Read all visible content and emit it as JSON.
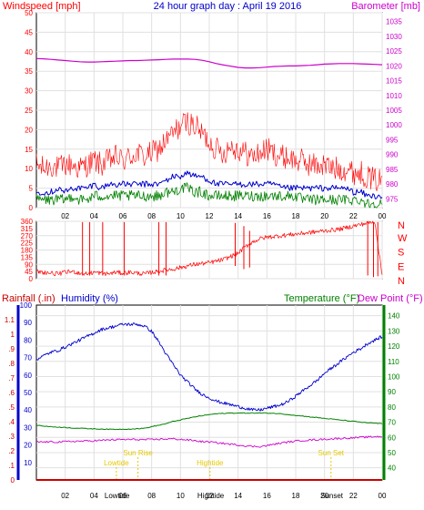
{
  "header": {
    "title": "24 hour graph day : April 19 2016",
    "left_label": "Windspeed [mph]",
    "right_label": "Barometer [mb]"
  },
  "colors": {
    "wind": "#ff0000",
    "gust": "#ff0000",
    "avg": "#0000cc",
    "speed": "#008000",
    "baro": "#cc00cc",
    "direction": "#ff0000",
    "humidity": "#0000cc",
    "temperature": "#008000",
    "dewpoint": "#cc00cc",
    "events": "#e6c800",
    "rain_axis": "#cc0000",
    "hum_axis": "#0000cc",
    "temp_axis": "#008000",
    "dew_axis": "#cc00cc",
    "title": "#0000cc"
  },
  "x_ticks": [
    "02",
    "04",
    "06",
    "08",
    "10",
    "12",
    "14",
    "16",
    "18",
    "20",
    "22",
    "00"
  ],
  "chart_data": [
    {
      "type": "line",
      "x": [
        0,
        0.5,
        1,
        1.5,
        2,
        2.5,
        3,
        3.5,
        4,
        4.5,
        5,
        5.5,
        6,
        6.5,
        7,
        7.5,
        8,
        8.5,
        9,
        9.5,
        10,
        10.5,
        11,
        11.5,
        12,
        12.5,
        13,
        13.5,
        14,
        14.5,
        15,
        15.5,
        16,
        16.5,
        17,
        17.5,
        18,
        18.5,
        19,
        19.5,
        20,
        20.5,
        21,
        21.5,
        22,
        22.5,
        23,
        23.5,
        24
      ],
      "series": [
        {
          "name": "Windspeed",
          "axis": "left",
          "values": [
            11,
            10,
            11,
            10,
            11,
            11,
            10,
            11,
            12,
            11,
            12,
            13,
            12,
            13,
            14,
            13,
            14,
            15,
            17,
            19,
            21,
            22,
            21,
            19,
            17,
            15,
            14,
            16,
            15,
            14,
            13,
            14,
            15,
            14,
            13,
            13,
            12,
            12,
            11,
            11,
            11,
            10,
            10,
            10,
            9,
            9,
            8,
            7,
            7
          ]
        },
        {
          "values": [
            4,
            4,
            4,
            5,
            4,
            5,
            5,
            5,
            6,
            5,
            6,
            6,
            6,
            6,
            6,
            6,
            6,
            6,
            7,
            8,
            8,
            9,
            8,
            8,
            7,
            6,
            6,
            6,
            6,
            6,
            6,
            6,
            6,
            6,
            5,
            5,
            5,
            5,
            5,
            5,
            5,
            5,
            5,
            5,
            4,
            4,
            3,
            3,
            3
          ]
        },
        {
          "values": [
            2,
            2,
            2,
            2,
            2,
            3,
            2,
            2,
            3,
            3,
            3,
            3,
            3,
            3,
            3,
            3,
            3,
            3,
            4,
            4,
            5,
            5,
            4,
            4,
            3,
            3,
            3,
            3,
            3,
            3,
            3,
            3,
            3,
            3,
            3,
            3,
            3,
            2,
            2,
            2,
            2,
            2,
            2,
            2,
            2,
            2,
            1,
            1,
            1
          ]
        },
        {
          "name": "Barometer",
          "axis": "right",
          "values": [
            1022.5,
            1022.4,
            1022.2,
            1022,
            1021.8,
            1021.6,
            1021.4,
            1021.3,
            1021.3,
            1021.4,
            1021.5,
            1021.6,
            1021.7,
            1021.8,
            1021.8,
            1021.9,
            1022,
            1022.1,
            1022.2,
            1022.3,
            1022.3,
            1022.3,
            1022.2,
            1021.9,
            1021.4,
            1020.8,
            1020.3,
            1019.9,
            1019.5,
            1019.3,
            1019.3,
            1019.4,
            1019.6,
            1019.8,
            1019.9,
            1020,
            1020,
            1020.1,
            1020.2,
            1020.4,
            1020.6,
            1020.7,
            1020.8,
            1020.8,
            1020.8,
            1020.7,
            1020.6,
            1020.5,
            1020.4
          ]
        }
      ],
      "y_left": {
        "ticks": [
          0,
          5,
          10,
          15,
          20,
          25,
          30,
          35,
          40,
          45,
          50
        ],
        "range": [
          0,
          50
        ]
      },
      "y_right": {
        "ticks": [
          975,
          980,
          985,
          990,
          995,
          1000,
          1005,
          1010,
          1015,
          1020,
          1025,
          1030,
          1035
        ],
        "range": [
          972,
          1038
        ]
      },
      "x_range": [
        0,
        24
      ]
    },
    {
      "type": "scatter",
      "x": [
        0,
        0.5,
        1,
        1.5,
        2,
        2.5,
        3,
        3.5,
        4,
        4.5,
        5,
        5.5,
        6,
        6.5,
        7,
        7.5,
        8,
        8.5,
        9,
        9.5,
        10,
        10.5,
        11,
        11.5,
        12,
        12.5,
        13,
        13.5,
        14,
        14.5,
        15,
        15.5,
        16,
        16.5,
        17,
        17.5,
        18,
        18.5,
        19,
        19.5,
        20,
        20.5,
        21,
        21.5,
        22,
        22.5,
        23,
        23.5,
        24
      ],
      "series": [
        {
          "name": "Wind direction",
          "values": [
            45,
            40,
            35,
            30,
            40,
            45,
            35,
            30,
            40,
            35,
            30,
            40,
            35,
            40,
            35,
            30,
            40,
            45,
            55,
            60,
            70,
            80,
            90,
            95,
            100,
            110,
            120,
            140,
            160,
            200,
            230,
            250,
            260,
            265,
            270,
            275,
            280,
            285,
            290,
            295,
            300,
            305,
            310,
            320,
            330,
            340,
            350,
            355,
            20
          ]
        }
      ],
      "y_left": {
        "ticks": [
          0,
          45,
          90,
          135,
          180,
          225,
          270,
          315,
          360
        ],
        "range": [
          0,
          360
        ]
      },
      "y_right_labels": [
        "N",
        "W",
        "S",
        "E",
        "N"
      ],
      "spikes": [
        {
          "x": 3.2,
          "y1": 20,
          "y2": 355
        },
        {
          "x": 3.7,
          "y1": 20,
          "y2": 355
        },
        {
          "x": 4.6,
          "y1": 20,
          "y2": 355
        },
        {
          "x": 6.1,
          "y1": 20,
          "y2": 355
        },
        {
          "x": 8.5,
          "y1": 20,
          "y2": 355
        },
        {
          "x": 9.0,
          "y1": 20,
          "y2": 355
        },
        {
          "x": 13.8,
          "y1": 80,
          "y2": 350
        },
        {
          "x": 14.4,
          "y1": 60,
          "y2": 330
        },
        {
          "x": 14.8,
          "y1": 70,
          "y2": 300
        },
        {
          "x": 23.0,
          "y1": 20,
          "y2": 355
        },
        {
          "x": 23.4,
          "y1": 10,
          "y2": 355
        },
        {
          "x": 23.7,
          "y1": 15,
          "y2": 355
        }
      ],
      "x_range": [
        0,
        24
      ]
    },
    {
      "type": "line",
      "x": [
        0,
        0.5,
        1,
        1.5,
        2,
        2.5,
        3,
        3.5,
        4,
        4.5,
        5,
        5.5,
        6,
        6.5,
        7,
        7.5,
        8,
        8.5,
        9,
        9.5,
        10,
        10.5,
        11,
        11.5,
        12,
        12.5,
        13,
        13.5,
        14,
        14.5,
        15,
        15.5,
        16,
        16.5,
        17,
        17.5,
        18,
        18.5,
        19,
        19.5,
        20,
        20.5,
        21,
        21.5,
        22,
        22.5,
        23,
        23.5,
        24
      ],
      "left_labels": {
        "rainfall": "Rainfall (.in)",
        "humidity": "Humidity (%)"
      },
      "right_labels": {
        "temperature": "Temperature (°F)",
        "dewpoint": "Dew Point (°F)"
      },
      "series": [
        {
          "name": "Humidity",
          "axis": "humidity",
          "values": [
            69,
            71,
            73,
            74,
            76,
            78,
            80,
            82,
            84,
            86,
            87,
            88,
            89,
            89,
            89,
            88,
            85,
            79,
            72,
            66,
            60,
            56,
            52,
            49,
            47,
            45,
            44,
            43,
            42,
            41,
            40,
            40,
            41,
            42,
            43,
            45,
            48,
            51,
            54,
            57,
            61,
            64,
            67,
            70,
            73,
            75,
            78,
            80,
            82
          ]
        },
        {
          "name": "Temperature",
          "axis": "temp",
          "values": [
            68,
            67.5,
            67,
            66.8,
            66.5,
            66.2,
            66,
            65.8,
            65.6,
            65.5,
            65.3,
            65.3,
            65.4,
            65.5,
            65.7,
            66,
            67,
            68,
            69,
            70.5,
            71.5,
            72.5,
            73.5,
            74.3,
            75,
            75.5,
            75.8,
            76,
            76,
            76,
            76,
            76,
            76,
            75.8,
            75.5,
            75,
            74.5,
            74,
            73.5,
            73,
            72.5,
            72,
            71.5,
            71,
            70.5,
            70,
            69.6,
            69.3,
            69
          ]
        },
        {
          "name": "Dew Point",
          "axis": "temp",
          "values": [
            57,
            57,
            57,
            57,
            57.2,
            57.4,
            57.5,
            57.6,
            57.8,
            58,
            58.3,
            58.5,
            58.6,
            58.6,
            58.6,
            58.5,
            58.5,
            58.8,
            59,
            59,
            58.7,
            58.3,
            57.8,
            57.2,
            57,
            56.5,
            56,
            55.5,
            55,
            54.5,
            54,
            54,
            54.5,
            55.5,
            56.3,
            57,
            57.5,
            58,
            58.3,
            58.5,
            58.8,
            59,
            59.3,
            59.5,
            59.7,
            60,
            60.2,
            60.5,
            60.5
          ]
        },
        {
          "name": "Rainfall",
          "axis": "rain",
          "values": [
            0,
            0,
            0,
            0,
            0,
            0,
            0,
            0,
            0,
            0,
            0,
            0,
            0,
            0,
            0,
            0,
            0,
            0,
            0,
            0,
            0,
            0,
            0,
            0,
            0,
            0,
            0,
            0,
            0,
            0,
            0,
            0,
            0,
            0,
            0,
            0,
            0,
            0,
            0,
            0,
            0,
            0,
            0,
            0,
            0,
            0,
            0,
            0,
            0
          ]
        }
      ],
      "rain_axis": {
        "ticks": [
          "0",
          ".1",
          ".2",
          ".3",
          ".4",
          ".5",
          ".6",
          ".7",
          ".8",
          ".9",
          "1",
          "1.1"
        ],
        "range": [
          0,
          1.2
        ]
      },
      "humidity_axis": {
        "ticks": [
          "10",
          "20",
          "30",
          "40",
          "50",
          "60",
          "70",
          "80",
          "90",
          "100"
        ],
        "range": [
          0,
          100
        ]
      },
      "temp_axis": {
        "ticks": [
          "40",
          "50",
          "60",
          "70",
          "80",
          "90",
          "100",
          "110",
          "120",
          "130",
          "140"
        ],
        "range": [
          32,
          147
        ]
      },
      "events": [
        {
          "label": "Sun Rise",
          "x": 7.05,
          "row": 0
        },
        {
          "label": "Lowtide",
          "x": 5.55,
          "row": 1
        },
        {
          "label": "Hightide",
          "x": 12.05,
          "row": 1
        },
        {
          "label": "Sun Set",
          "x": 20.45,
          "row": 0
        }
      ],
      "x_tick_overlays": [
        {
          "text": "Lowtide",
          "x": 5.6
        },
        {
          "text": "Hightide",
          "x": 12.1
        },
        {
          "text": "Sunset",
          "x": 20.5
        }
      ],
      "x_range": [
        0,
        24
      ]
    }
  ]
}
